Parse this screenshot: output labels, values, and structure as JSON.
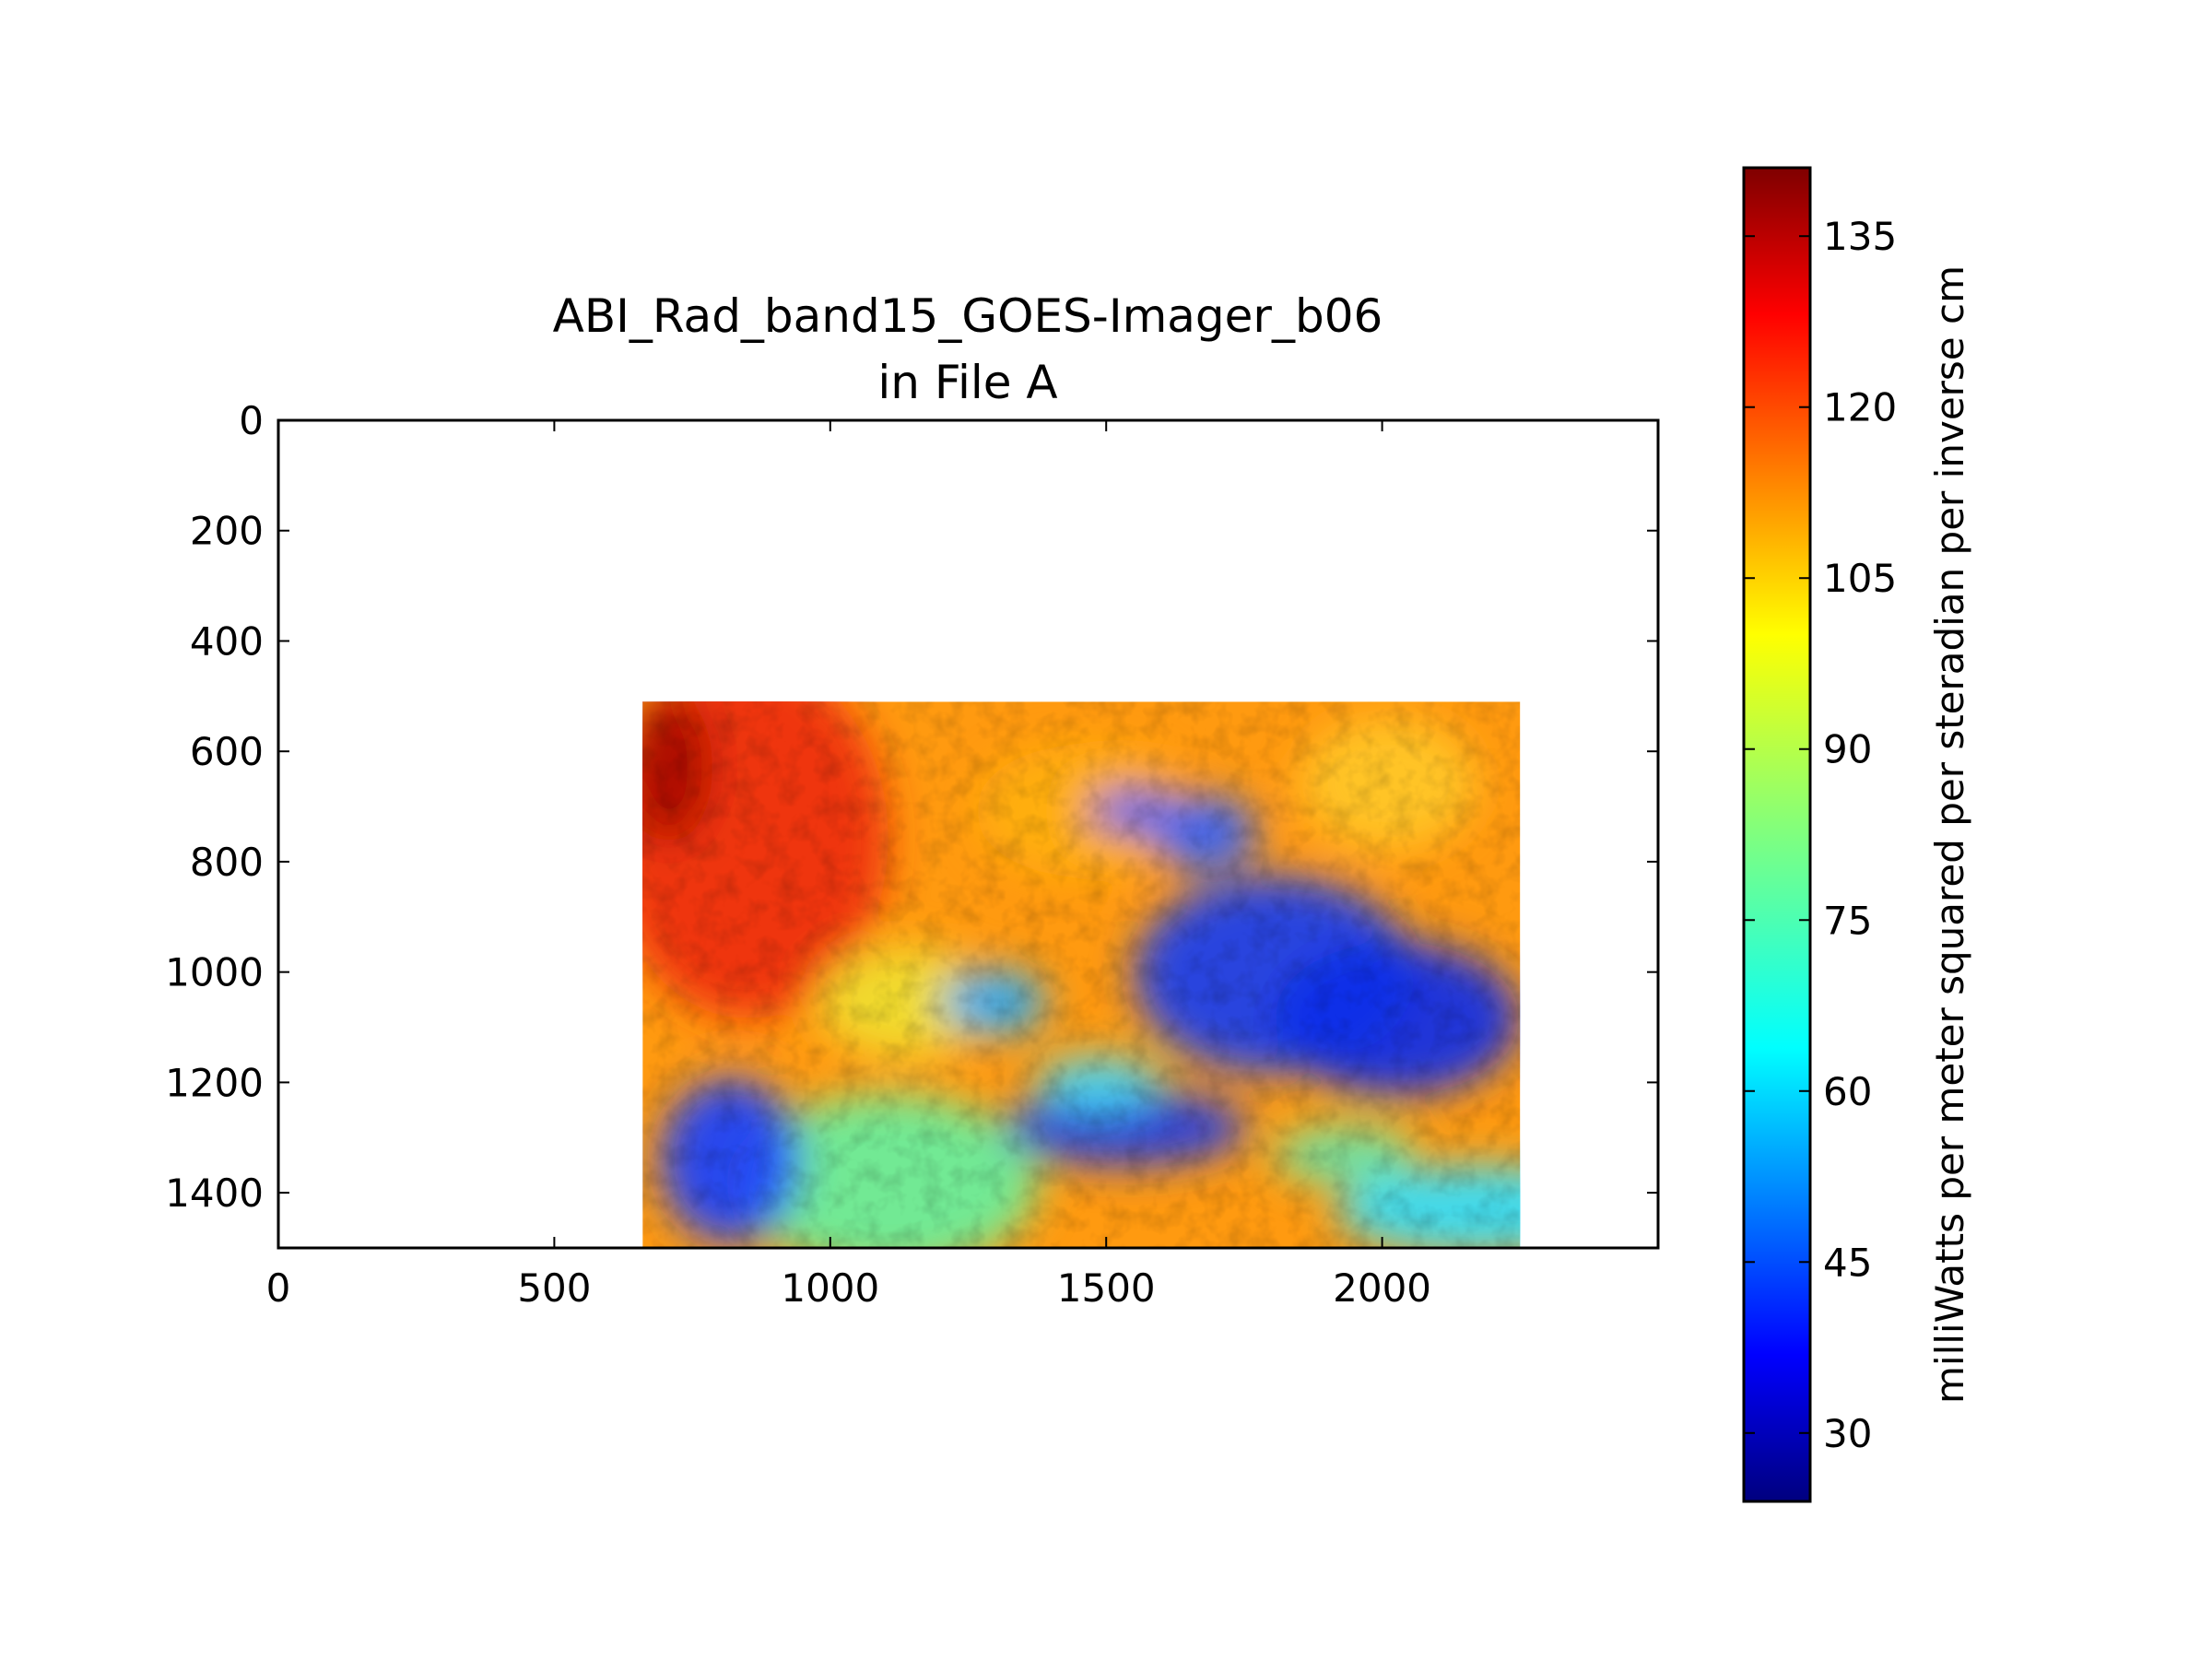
{
  "chart_data": {
    "type": "heatmap",
    "title_line1": "ABI_Rad_band15_GOES-Imager_b06",
    "title_line2": "in File A",
    "xlabel": "",
    "ylabel": "",
    "xlim": [
      0,
      2500
    ],
    "ylim": [
      1500,
      0
    ],
    "y_inverted": true,
    "x_ticks": [
      0,
      500,
      1000,
      1500,
      2000
    ],
    "y_ticks": [
      0,
      200,
      400,
      600,
      800,
      1000,
      1200,
      1400
    ],
    "image_extent": {
      "x": [
        660,
        2250
      ],
      "y": [
        510,
        1500
      ]
    },
    "colormap": "jet",
    "colors": {
      "jet": [
        "#00007f",
        "#0000ff",
        "#007fff",
        "#00ffff",
        "#7fff7f",
        "#ffff00",
        "#ff7f00",
        "#ff0000",
        "#7f0000"
      ]
    },
    "colorbar": {
      "label": "milliWatts per meter squared per steradian per inverse cm",
      "range": [
        24,
        141
      ],
      "ticks": [
        30,
        45,
        60,
        75,
        90,
        105,
        120,
        135
      ]
    }
  }
}
